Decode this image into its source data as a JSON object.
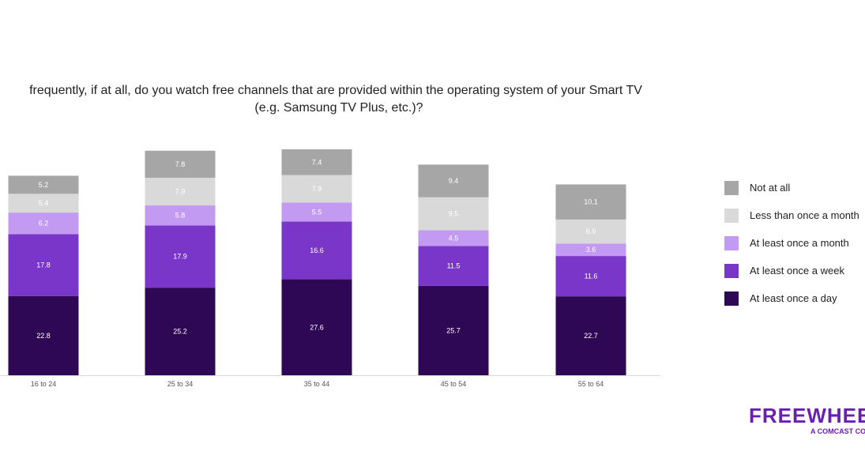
{
  "chart_data": {
    "type": "bar",
    "stacked": true,
    "title_line1": "frequently, if at all, do you watch free channels that are provided within the operating system of your Smart TV",
    "title_line2": "(e.g. Samsung TV Plus, etc.)?",
    "categories": [
      "16 to 24",
      "25 to 34",
      "35 to 44",
      "45 to 54",
      "55 to 64"
    ],
    "series": [
      {
        "name": "At least once a day",
        "color": "#2e0854",
        "values": [
          22.8,
          25.2,
          27.6,
          25.7,
          22.7
        ]
      },
      {
        "name": "At least once a week",
        "color": "#7a35c9",
        "values": [
          17.8,
          17.9,
          16.6,
          11.5,
          11.6
        ]
      },
      {
        "name": "At least once a month",
        "color": "#c39af2",
        "values": [
          6.2,
          5.8,
          5.5,
          4.5,
          3.6
        ]
      },
      {
        "name": "Less than once a month",
        "color": "#d9d9d9",
        "values": [
          5.4,
          7.9,
          7.9,
          9.5,
          6.9
        ]
      },
      {
        "name": "Not at all",
        "color": "#a6a6a6",
        "values": [
          5.2,
          7.8,
          7.4,
          9.4,
          10.1
        ]
      }
    ],
    "legend_order": [
      "Not at all",
      "Less than once a month",
      "At least once a month",
      "At least once a week",
      "At least once a day"
    ],
    "legend_position": "right",
    "grid": false
  },
  "logo": {
    "wordmark": "FREEWHEEL",
    "tagline": "A COMCAST COMPANY"
  }
}
